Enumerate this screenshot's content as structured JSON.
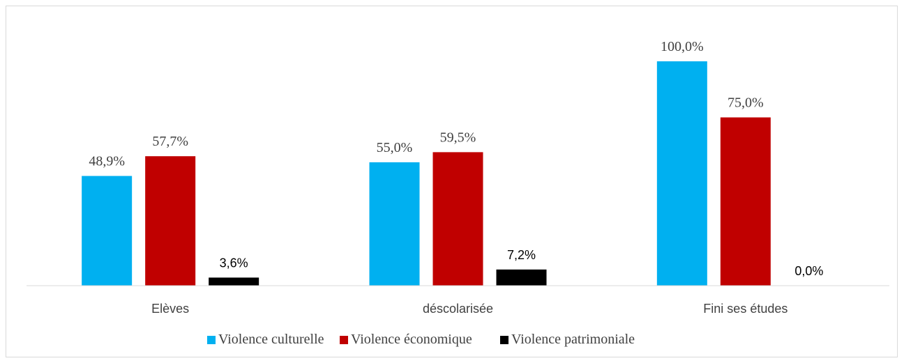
{
  "chart_data": {
    "type": "bar",
    "title": "",
    "xlabel": "",
    "ylabel": "",
    "ylim": [
      0,
      100
    ],
    "grid": false,
    "legend_position": "bottom",
    "categories": [
      "Elèves",
      "déscolarisée",
      "Fini ses études"
    ],
    "series": [
      {
        "name": "Violence culturelle",
        "color": "#00b0f0",
        "values": [
          48.9,
          55.0,
          100.0
        ],
        "labels": [
          "48,9%",
          "55,0%",
          "100,0%"
        ]
      },
      {
        "name": "Violence économique",
        "color": "#c00000",
        "values": [
          57.7,
          59.5,
          75.0
        ],
        "labels": [
          "57,7%",
          "59,5%",
          "75,0%"
        ]
      },
      {
        "name": "Violence patrimoniale",
        "color": "#000000",
        "values": [
          3.6,
          7.2,
          0.0
        ],
        "labels": [
          "3,6%",
          "7,2%",
          "0,0%"
        ]
      }
    ]
  }
}
